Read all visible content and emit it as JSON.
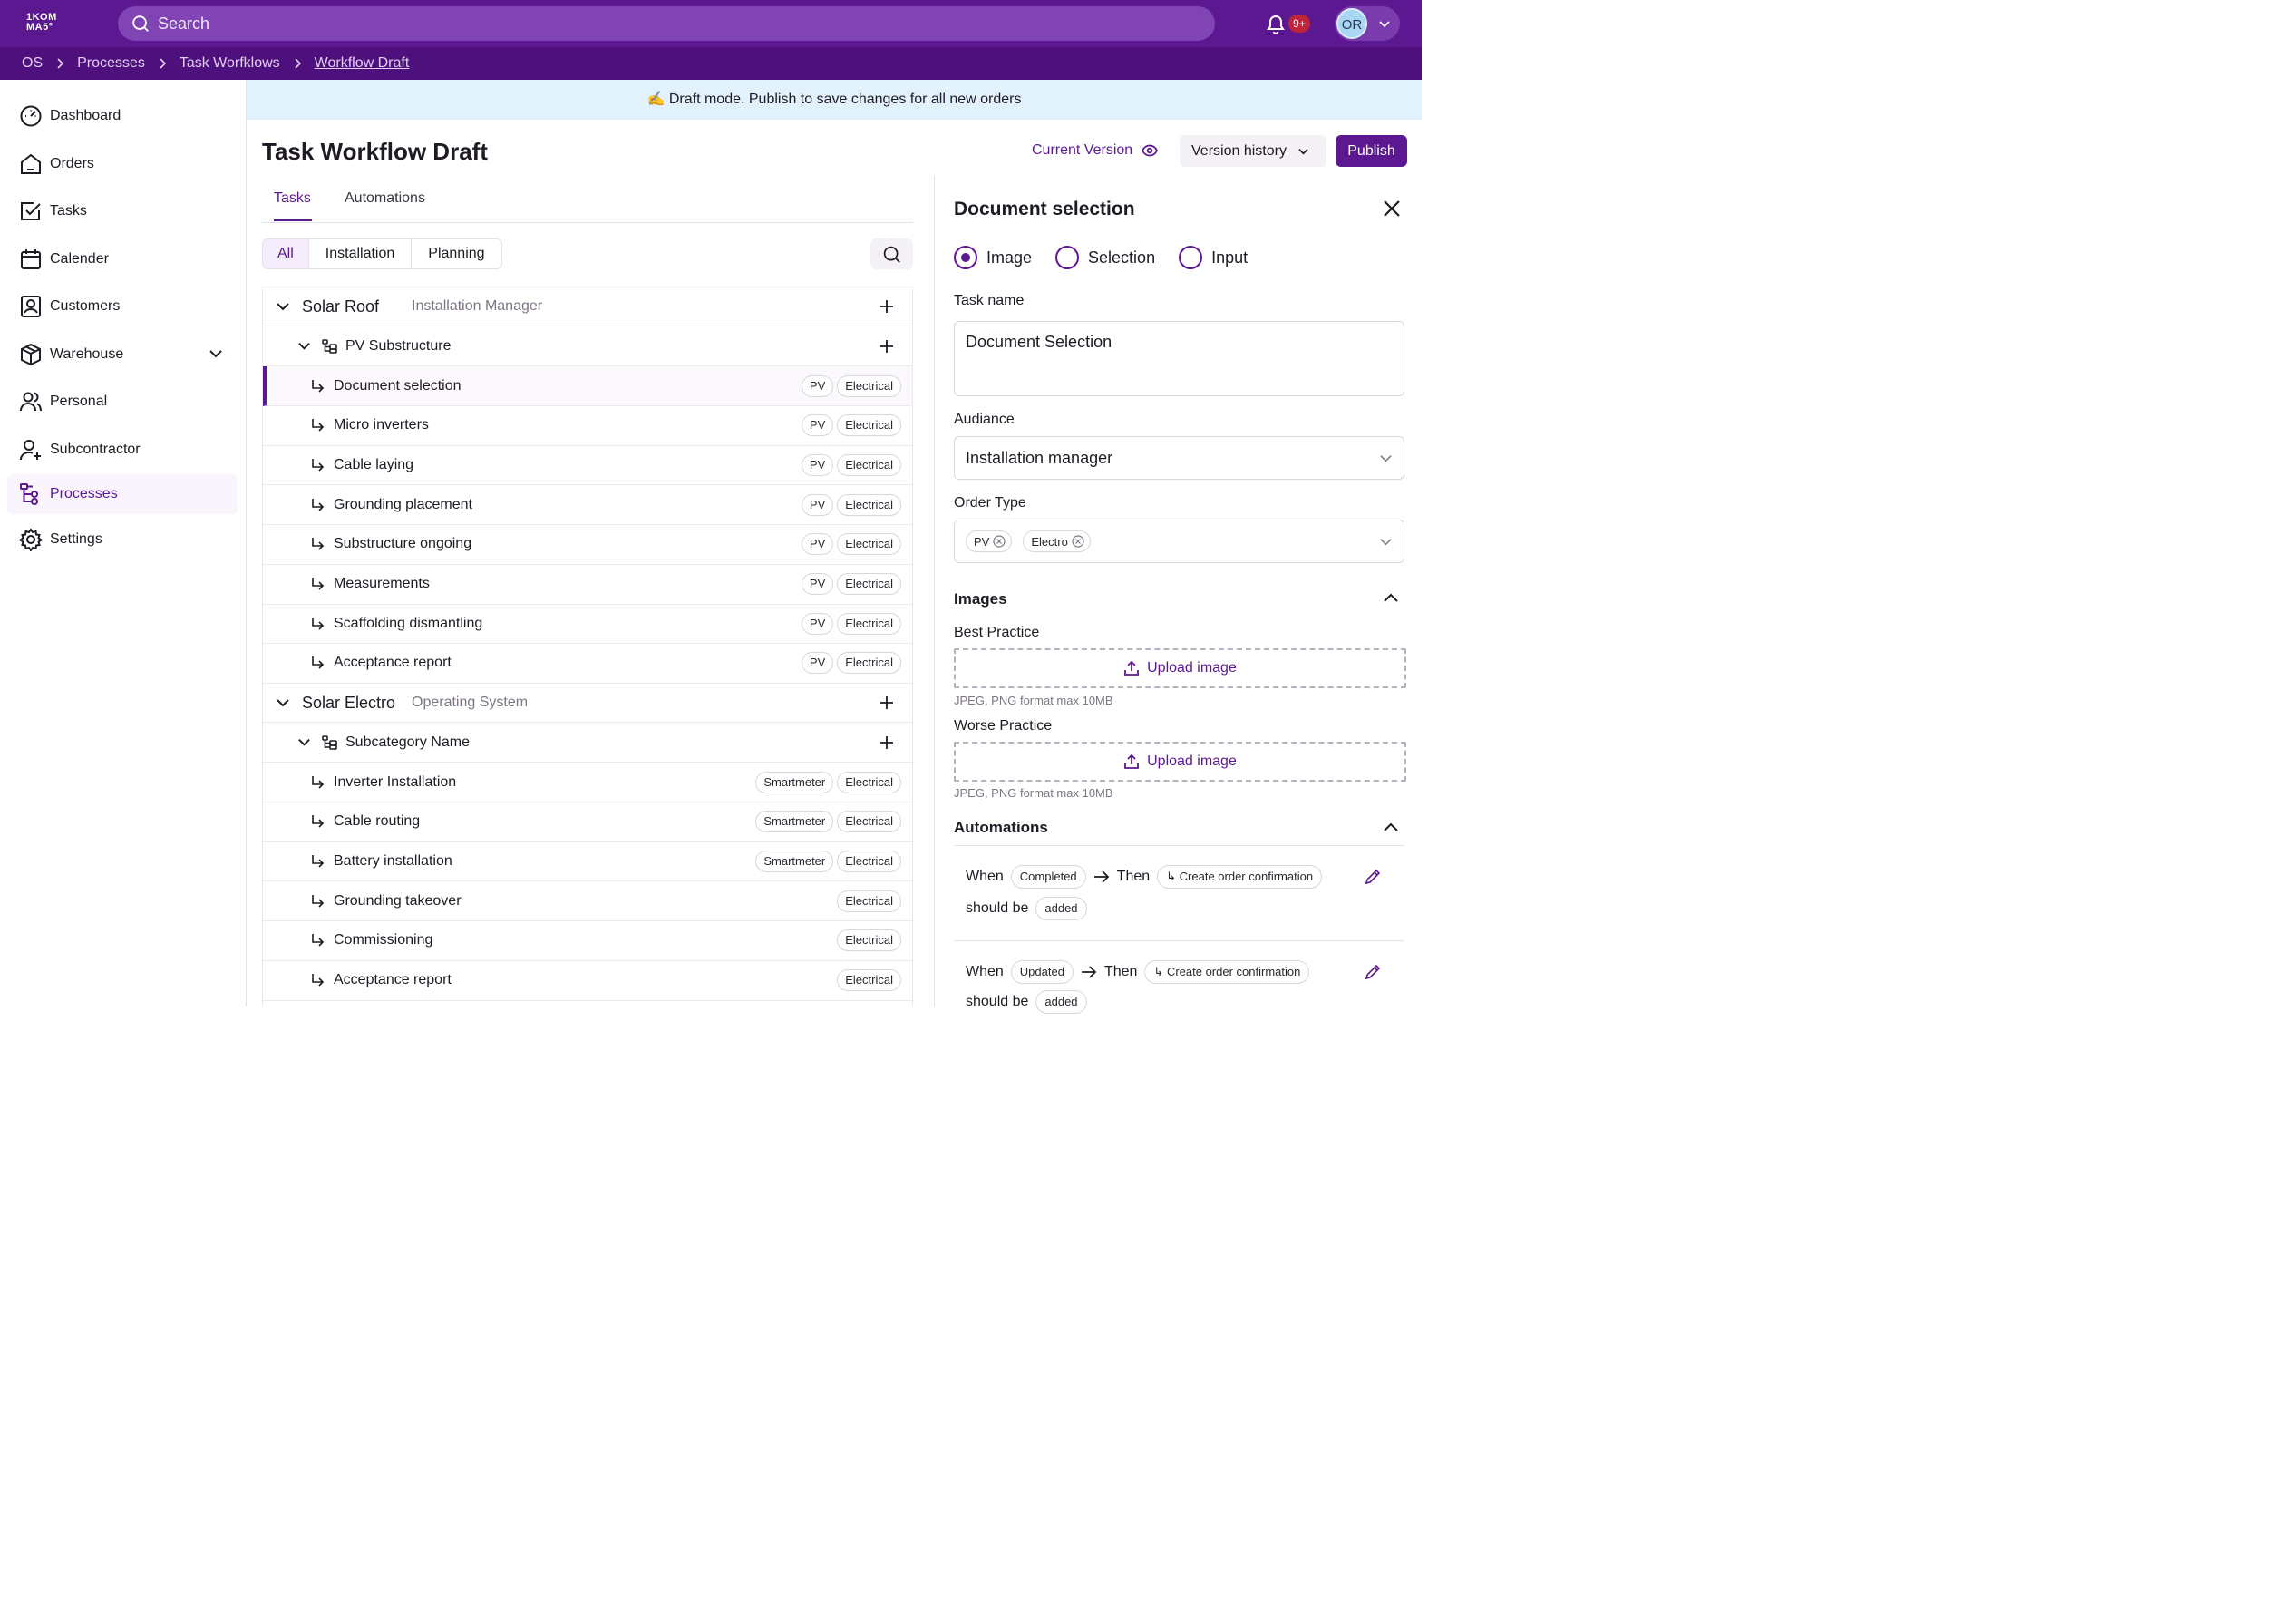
{
  "app": {
    "logo_line1": "1KOM",
    "logo_line2": "MA5°"
  },
  "search": {
    "placeholder": "Search"
  },
  "notifications": {
    "count": "9+"
  },
  "user": {
    "initials": "OR"
  },
  "breadcrumb": [
    "OS",
    "Processes",
    "Task Worfklows",
    "Workflow Draft"
  ],
  "sidebar": {
    "items": [
      {
        "label": "Dashboard",
        "icon": "dashboard-icon"
      },
      {
        "label": "Orders",
        "icon": "home-icon"
      },
      {
        "label": "Tasks",
        "icon": "checkbox-icon"
      },
      {
        "label": "Calender",
        "icon": "calendar-icon"
      },
      {
        "label": "Customers",
        "icon": "contact-icon"
      },
      {
        "label": "Warehouse",
        "icon": "box-icon"
      },
      {
        "label": "Personal",
        "icon": "users-icon"
      },
      {
        "label": "Subcontractor",
        "icon": "user-plus-icon"
      },
      {
        "label": "Processes",
        "icon": "workflow-icon",
        "active": true
      },
      {
        "label": "Settings",
        "icon": "gear-icon"
      }
    ]
  },
  "banner": {
    "text": "✍️ Draft mode. Publish to save changes for all new orders"
  },
  "page": {
    "title": "Task Workflow Draft",
    "current_version": "Current Version",
    "version_history": "Version history",
    "publish": "Publish"
  },
  "tabs": [
    "Tasks",
    "Automations"
  ],
  "filters": [
    "All",
    "Installation",
    "Planning"
  ],
  "categories": [
    {
      "name": "Solar Roof",
      "role": "Installation Manager",
      "subcategory": "PV Substructure",
      "tasks": [
        {
          "name": "Document selection",
          "tags": [
            "PV",
            "Electrical"
          ],
          "selected": true
        },
        {
          "name": "Micro inverters",
          "tags": [
            "PV",
            "Electrical"
          ]
        },
        {
          "name": "Cable laying",
          "tags": [
            "PV",
            "Electrical"
          ]
        },
        {
          "name": "Grounding placement",
          "tags": [
            "PV",
            "Electrical"
          ]
        },
        {
          "name": "Substructure ongoing",
          "tags": [
            "PV",
            "Electrical"
          ]
        },
        {
          "name": "Measurements",
          "tags": [
            "PV",
            "Electrical"
          ]
        },
        {
          "name": "Scaffolding dismantling",
          "tags": [
            "PV",
            "Electrical"
          ]
        },
        {
          "name": "Acceptance report",
          "tags": [
            "PV",
            "Electrical"
          ]
        }
      ]
    },
    {
      "name": "Solar Electro",
      "role": "Operating System",
      "subcategory": "Subcategory Name",
      "tasks": [
        {
          "name": "Inverter Installation",
          "tags": [
            "Smartmeter",
            "Electrical"
          ]
        },
        {
          "name": "Cable routing",
          "tags": [
            "Smartmeter",
            "Electrical"
          ]
        },
        {
          "name": "Battery installation",
          "tags": [
            "Smartmeter",
            "Electrical"
          ]
        },
        {
          "name": "Grounding takeover",
          "tags": [
            "Electrical"
          ]
        },
        {
          "name": "Commissioning",
          "tags": [
            "Electrical"
          ]
        },
        {
          "name": "Acceptance report",
          "tags": [
            "Electrical"
          ]
        }
      ]
    }
  ],
  "panel": {
    "title": "Document selection",
    "types": [
      "Image",
      "Selection",
      "Input"
    ],
    "task_name_label": "Task name",
    "task_name_value": "Document Selection",
    "audience_label": "Audiance",
    "audience_value": "Installation manager",
    "order_type_label": "Order Type",
    "order_types": [
      "PV",
      "Electro"
    ],
    "images_header": "Images",
    "best_practice": "Best Practice",
    "worse_practice": "Worse Practice",
    "upload_label": "Upload image",
    "upload_hint": "JPEG, PNG format max 10MB",
    "automations_header": "Automations",
    "automations": [
      {
        "when": "When",
        "trigger": "Completed",
        "then": "Then",
        "action": "Create order confirmation",
        "should": "should be",
        "state": "added"
      },
      {
        "when": "When",
        "trigger": "Updated",
        "then": "Then",
        "action": "Create order confirmation",
        "should": "should be",
        "state": "added"
      }
    ]
  },
  "colors": {
    "brand": "#5b1891",
    "topbar": "#5b1891",
    "breadcrumb_bar": "#4e107c",
    "banner": "#e2f2fd",
    "badge": "#c0233a"
  }
}
